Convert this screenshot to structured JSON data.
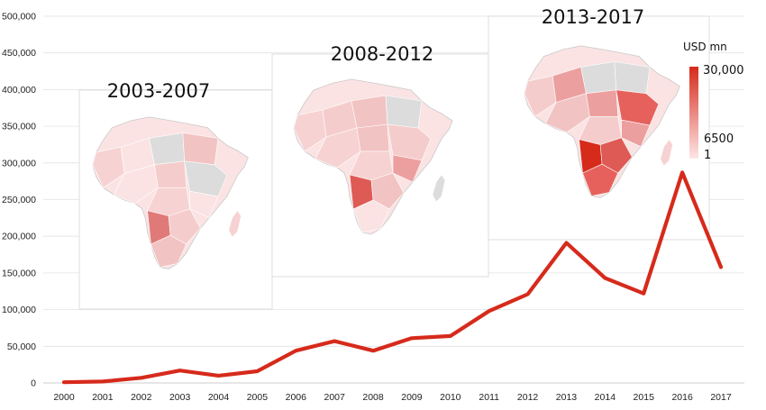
{
  "chart_data": {
    "type": "line",
    "title": "",
    "xlabel": "",
    "ylabel": "",
    "x": [
      "2000",
      "2001",
      "2002",
      "2003",
      "2004",
      "2005",
      "2006",
      "2007",
      "2008",
      "2009",
      "2010",
      "2011",
      "2012",
      "2013",
      "2014",
      "2015",
      "2016",
      "2017"
    ],
    "series": [
      {
        "values": [
          1000,
          2000,
          7000,
          17000,
          10000,
          16000,
          44000,
          57000,
          44000,
          61000,
          64000,
          98000,
          121000,
          191000,
          143000,
          122000,
          287000,
          158000
        ],
        "color": "#d62a1b"
      }
    ],
    "ylim": [
      0,
      500000
    ],
    "yticks": [
      0,
      50000,
      100000,
      150000,
      200000,
      250000,
      300000,
      350000,
      400000,
      450000,
      500000
    ],
    "ytick_labels": [
      "0",
      "50,000",
      "100,000",
      "150,000",
      "200,000",
      "250,000",
      "300,000",
      "350,000",
      "400,000",
      "450,000",
      "500,000"
    ],
    "grid": true,
    "insets": [
      {
        "title": "2003-2007",
        "highlight": "Angola",
        "highlight_color": "#e07a78"
      },
      {
        "title": "2008-2012",
        "highlight": "Angola",
        "highlight_color": "#de5a55"
      },
      {
        "title": "2013-2017",
        "highlight": "Angola",
        "highlight_color": "#d62a1b"
      }
    ],
    "color_legend": {
      "unit": "USD mn",
      "labels": [
        "30,000",
        "6500",
        "1"
      ],
      "color_high": "#d62a1b",
      "color_low": "#fde6e6"
    }
  }
}
